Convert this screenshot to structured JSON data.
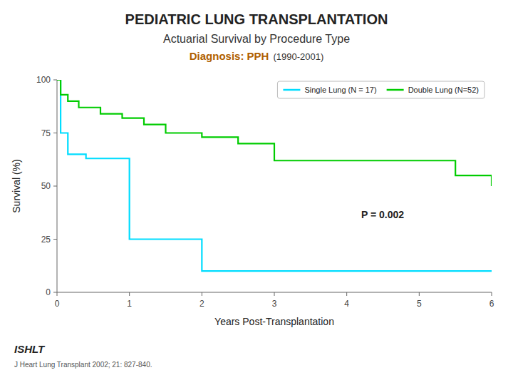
{
  "chart_data": {
    "type": "step",
    "title": "PEDIATRIC LUNG TRANSPLANTATION",
    "subtitle": "Actuarial Survival by Procedure Type",
    "caption": [
      "Diagnosis: PPH",
      "(1990-2001)"
    ],
    "x_label": "Years Post-Transplantation",
    "y_label": "Survival (%)",
    "annotation": "P = 0.002",
    "credit": "ISHLT",
    "footnote": "J Heart Lung Transplant 2002; 21: 827-840.",
    "series": [
      {
        "name": "Single Lung  (N = 17)",
        "color": "#00ddff",
        "x": [
          0,
          0.05,
          0.15,
          0.4,
          0.85,
          0.85,
          1.0,
          1.0,
          1.5,
          2.0,
          2.0,
          5.0,
          5.0,
          6.0
        ],
        "values": [
          100,
          75,
          65,
          63,
          63,
          63,
          25,
          25,
          25,
          10,
          10,
          10,
          10,
          10
        ]
      },
      {
        "name": "Double Lung (N=52)",
        "color": "#00cc00",
        "x": [
          0,
          0.05,
          0.15,
          0.3,
          0.6,
          0.9,
          1.2,
          1.5,
          2.0,
          2.5,
          3.0,
          3.0,
          5.0,
          5.0,
          5.5,
          6.0
        ],
        "values": [
          100,
          93,
          90,
          87,
          84,
          82,
          79,
          75,
          73,
          70,
          62,
          62,
          62,
          62,
          55,
          50
        ]
      }
    ],
    "xlim": [
      0,
      6
    ],
    "ylim": [
      0,
      100
    ],
    "xticks": [
      0,
      1,
      2,
      3,
      4,
      5,
      6
    ],
    "yticks": [
      0,
      25,
      50,
      75,
      100
    ],
    "grid": false,
    "legend": "top-right"
  }
}
